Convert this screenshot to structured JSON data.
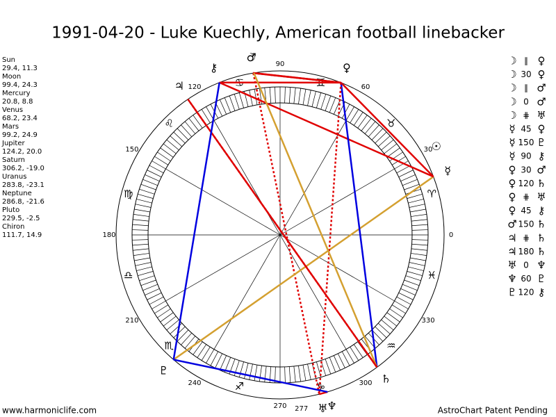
{
  "title": "1991-04-20 - Luke Kuechly, American football linebacker",
  "planets": [
    {
      "name": "Sun",
      "glyph": "☉",
      "position": "29.4, 11.3"
    },
    {
      "name": "Moon",
      "glyph": "☽",
      "position": "99.4, 24.3"
    },
    {
      "name": "Mercury",
      "glyph": "☿",
      "position": "20.8, 8.8"
    },
    {
      "name": "Venus",
      "glyph": "♀",
      "position": "68.2, 23.4"
    },
    {
      "name": "Mars",
      "glyph": "♂",
      "position": "99.2, 24.9"
    },
    {
      "name": "Jupiter",
      "glyph": "♃",
      "position": "124.2, 20.0"
    },
    {
      "name": "Saturn",
      "glyph": "♄",
      "position": "306.2, -19.0"
    },
    {
      "name": "Uranus",
      "glyph": "♅",
      "position": "283.8, -23.1"
    },
    {
      "name": "Neptune",
      "glyph": "♆",
      "position": "286.8, -21.6"
    },
    {
      "name": "Pluto",
      "glyph": "♇",
      "position": "229.5, -2.5"
    },
    {
      "name": "Chiron",
      "glyph": "⚷",
      "position": "111.7, 14.9"
    }
  ],
  "signs": [
    "♈",
    "♉",
    "♊",
    "♋",
    "♌",
    "♍",
    "♎",
    "♏",
    "♐",
    "♑",
    "♒",
    "♓"
  ],
  "degree_labels": [
    0,
    30,
    60,
    90,
    120,
    150,
    180,
    210,
    240,
    270,
    300,
    330
  ],
  "ascendant": 277,
  "aspects": [
    {
      "from": "☽",
      "aspect": "∥",
      "to": "♀",
      "color": "#e00000",
      "dashed": true
    },
    {
      "from": "☽",
      "aspect": "30",
      "to": "♀",
      "color": "#e00000",
      "dashed": false
    },
    {
      "from": "☽",
      "aspect": "∥",
      "to": "♂",
      "color": "#e00000",
      "dashed": true
    },
    {
      "from": "☽",
      "aspect": "0",
      "to": "♂",
      "color": "#e00000",
      "dashed": false
    },
    {
      "from": "☽",
      "aspect": "⋕",
      "to": "♅",
      "color": "#e00000",
      "dashed": true
    },
    {
      "from": "☿",
      "aspect": "45",
      "to": "♀",
      "color": "#e00000",
      "dashed": false
    },
    {
      "from": "☿",
      "aspect": "150",
      "to": "♇",
      "color": "#d4a030",
      "dashed": false
    },
    {
      "from": "☿",
      "aspect": "90",
      "to": "⚷",
      "color": "#e00000",
      "dashed": false
    },
    {
      "from": "♀",
      "aspect": "30",
      "to": "♂",
      "color": "#e00000",
      "dashed": false
    },
    {
      "from": "♀",
      "aspect": "120",
      "to": "♄",
      "color": "#0000e0",
      "dashed": false
    },
    {
      "from": "♀",
      "aspect": "⋕",
      "to": "♅",
      "color": "#e00000",
      "dashed": true
    },
    {
      "from": "♀",
      "aspect": "45",
      "to": "⚷",
      "color": "#e00000",
      "dashed": false
    },
    {
      "from": "♂",
      "aspect": "150",
      "to": "♄",
      "color": "#d4a030",
      "dashed": false
    },
    {
      "from": "♃",
      "aspect": "⋕",
      "to": "♄",
      "color": "#e00000",
      "dashed": true
    },
    {
      "from": "♃",
      "aspect": "180",
      "to": "♄",
      "color": "#e00000",
      "dashed": false
    },
    {
      "from": "♅",
      "aspect": "0",
      "to": "♆",
      "color": "#e00000",
      "dashed": false
    },
    {
      "from": "♆",
      "aspect": "60",
      "to": "♇",
      "color": "#0000e0",
      "dashed": false
    },
    {
      "from": "♇",
      "aspect": "120",
      "to": "⚷",
      "color": "#0000e0",
      "dashed": false
    }
  ],
  "footer_left": "www.harmoniclife.com",
  "footer_right": "AstroChart Patent Pending"
}
